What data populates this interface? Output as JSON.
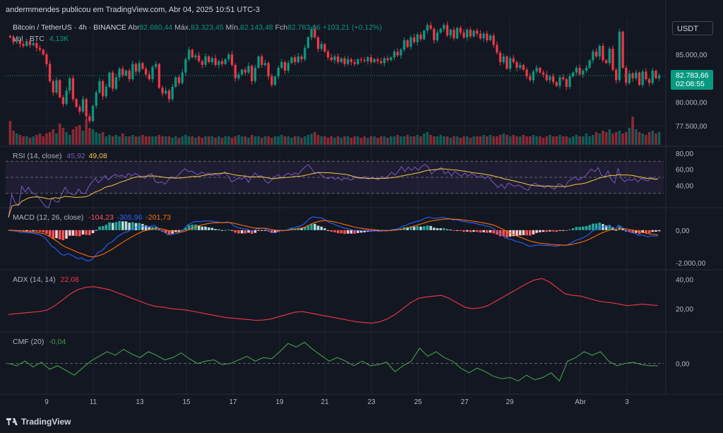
{
  "header": {
    "publisher": "andermmendes publicou em TradingView.com, Abr 04, 2025 10:51 UTC-3"
  },
  "symbol": {
    "name": "Bitcoin / TetherUS · 4h · BINANCE",
    "open_label": "Abr",
    "open": "82.680,44",
    "high_label": "Máx.",
    "high": "83.323,45",
    "low_label": "Mín.",
    "low": "82.143,48",
    "close_label": "Fch",
    "close": "82.783,66",
    "change": "+103,21 (+0,12%)"
  },
  "volume": {
    "label": "Vol · BTC",
    "value": "4,13K"
  },
  "currency_button": "USDT",
  "last_price": {
    "value": "82.783,66",
    "countdown": "02:08:55"
  },
  "colors": {
    "up": "#089981",
    "down": "#f23645",
    "rsi": "#7e57c2",
    "rsi_ma": "#f5c542",
    "macd": "#2962ff",
    "signal": "#ff6d00",
    "adx": "#f23645",
    "cmf": "#43a047"
  },
  "chart_data": [
    {
      "type": "candlestick",
      "title": "Bitcoin / TetherUS · 4h · BINANCE",
      "x_ticks": [
        "9",
        "11",
        "13",
        "15",
        "17",
        "19",
        "21",
        "23",
        "25",
        "27",
        "29",
        "Abr",
        "3"
      ],
      "y_ticks": [
        "85.000,00",
        "80.000,00",
        "77.500,00"
      ],
      "ylim": [
        75500,
        88800
      ],
      "closes": [
        86800,
        86300,
        86500,
        86100,
        85900,
        86400,
        86000,
        86200,
        85700,
        85500,
        85000,
        84000,
        82200,
        81000,
        82300,
        80500,
        79800,
        81200,
        82500,
        80300,
        79500,
        79000,
        80300,
        78500,
        78000,
        79600,
        81000,
        82200,
        80600,
        81600,
        83100,
        81400,
        82600,
        83500,
        82800,
        83300,
        82400,
        84000,
        83200,
        84100,
        83500,
        82900,
        82400,
        83700,
        84000,
        81500,
        80900,
        81200,
        80300,
        81600,
        82600,
        82000,
        83100,
        84500,
        85500,
        84700,
        84900,
        84300,
        83900,
        84800,
        84200,
        84600,
        83900,
        84300,
        84000,
        84500,
        85000,
        83900,
        82500,
        82900,
        83400,
        83100,
        83800,
        82200,
        83600,
        84800,
        83900,
        84100,
        82700,
        81800,
        82700,
        83600,
        84200,
        83300,
        84100,
        84700,
        84200,
        84800,
        84500,
        85700,
        86800,
        87700,
        86800,
        85600,
        86100,
        85300,
        84700,
        84400,
        84800,
        84200,
        84600,
        84000,
        84500,
        84200,
        84000,
        84500,
        84400,
        84300,
        84700,
        84200,
        84500,
        84300,
        84100,
        84600,
        84400,
        84700,
        85300,
        84900,
        85500,
        86500,
        85800,
        86800,
        86300,
        87100,
        86600,
        87500,
        88100,
        87700,
        86500,
        87300,
        87700,
        88100,
        87000,
        87600,
        86700,
        87800,
        87300,
        86800,
        87600,
        86900,
        87500,
        87200,
        86700,
        87200,
        86500,
        87000,
        86000,
        85200,
        84200,
        84800,
        83500,
        84600,
        84200,
        83600,
        83900,
        83400,
        82700,
        82300,
        83200,
        83600,
        83100,
        82900,
        82300,
        82700,
        82100,
        81700,
        82600,
        82400,
        81600,
        82700,
        83100,
        83600,
        82900,
        83300,
        83600,
        84400,
        85300,
        84800,
        85900,
        84400,
        84100,
        85600,
        83400,
        82300,
        87400,
        83600,
        82000,
        83000,
        82500,
        83100,
        81800,
        83200,
        82400,
        82000,
        83300,
        82500,
        82784
      ],
      "volume": [
        0.85,
        0.5,
        0.4,
        0.35,
        0.3,
        0.3,
        0.25,
        0.3,
        0.35,
        0.4,
        0.3,
        0.4,
        0.45,
        0.55,
        0.4,
        0.75,
        0.6,
        0.45,
        0.35,
        0.55,
        0.65,
        0.7,
        0.5,
        0.9,
        0.6,
        0.55,
        0.45,
        0.4,
        0.45,
        0.3,
        0.35,
        0.3,
        0.35,
        0.3,
        0.4,
        0.3,
        0.3,
        0.35,
        0.3,
        0.3,
        0.35,
        0.3,
        0.3,
        0.3,
        0.3,
        0.35,
        0.3,
        0.3,
        0.3,
        0.25,
        0.3,
        0.25,
        0.3,
        0.35,
        0.3,
        0.3,
        0.25,
        0.3,
        0.25,
        0.3,
        0.3,
        0.3,
        0.25,
        0.3,
        0.25,
        0.3,
        0.3,
        0.25,
        0.3,
        0.35,
        0.3,
        0.3,
        0.25,
        0.35,
        0.3,
        0.3,
        0.25,
        0.3,
        0.3,
        0.25,
        0.3,
        0.3,
        0.35,
        0.3,
        0.3,
        0.25,
        0.3,
        0.3,
        0.25,
        0.3,
        0.35,
        0.4,
        0.45,
        0.35,
        0.3,
        0.3,
        0.25,
        0.3,
        0.25,
        0.3,
        0.25,
        0.3,
        0.3,
        0.25,
        0.3,
        0.3,
        0.25,
        0.3,
        0.25,
        0.3,
        0.3,
        0.25,
        0.3,
        0.3,
        0.25,
        0.3,
        0.3,
        0.35,
        0.3,
        0.3,
        0.35,
        0.3,
        0.3,
        0.35,
        0.3,
        0.4,
        0.45,
        0.35,
        0.3,
        0.3,
        0.35,
        0.3,
        0.3,
        0.25,
        0.3,
        0.3,
        0.25,
        0.3,
        0.3,
        0.25,
        0.3,
        0.3,
        0.3,
        0.35,
        0.3,
        0.35,
        0.3,
        0.3,
        0.35,
        0.4,
        0.35,
        0.3,
        0.35,
        0.3,
        0.3,
        0.35,
        0.3,
        0.3,
        0.35,
        0.3,
        0.3,
        0.25,
        0.3,
        0.35,
        0.3,
        0.3,
        0.35,
        0.3,
        0.3,
        0.25,
        0.3,
        0.35,
        0.3,
        0.3,
        0.4,
        0.3,
        0.35,
        0.45,
        0.4,
        0.5,
        0.45,
        0.55,
        0.4,
        0.45,
        0.5,
        0.4,
        0.45,
        0.6,
        1.0,
        0.55,
        0.45,
        0.4,
        0.35,
        0.45,
        0.5,
        0.4,
        0.45,
        0.5,
        0.7,
        0.4
      ]
    },
    {
      "type": "line",
      "title": "RSI (14, close)",
      "values_label": [
        "45,92",
        "49,08"
      ],
      "y_ticks": [
        "80,00",
        "60,00",
        "40,00"
      ],
      "ylim": [
        14,
        86
      ],
      "bands": [
        70,
        50,
        30
      ]
    },
    {
      "type": "macd",
      "title": "MACD (12, 26, close)",
      "values_label": [
        "-104,23",
        "-305,96",
        "-201,73"
      ],
      "y_ticks": [
        "0,00",
        "-2.000,00"
      ],
      "ylim": [
        -2350,
        1250
      ]
    },
    {
      "type": "line",
      "title": "ADX (14, 14)",
      "values_label": [
        "22,08"
      ],
      "y_ticks": [
        "40,00",
        "20,00"
      ],
      "ylim": [
        5,
        45
      ],
      "series": [
        {
          "values": [
            16,
            16.5,
            17,
            17.5,
            18,
            19,
            22,
            26,
            30,
            33,
            34.5,
            35,
            34,
            33,
            31,
            29,
            27,
            25,
            23,
            21.5,
            21,
            20,
            19.5,
            19,
            18,
            17,
            16,
            15,
            14,
            13.5,
            13,
            12.5,
            12,
            12.2,
            13,
            14.5,
            16,
            17.5,
            18,
            17,
            16,
            15,
            14,
            13,
            12,
            11,
            10.5,
            10,
            11,
            13,
            16,
            20,
            24,
            27,
            28,
            28.5,
            29,
            27,
            24,
            21,
            20,
            20.5,
            22,
            25,
            28,
            31,
            34,
            37,
            39.5,
            40.5,
            38,
            34,
            30,
            29,
            28.5,
            27,
            25.5,
            24.5,
            24,
            23,
            22,
            22.5,
            23,
            22.5,
            22.1
          ]
        }
      ]
    },
    {
      "type": "line",
      "title": "CMF (20)",
      "values_label": [
        "-0,04"
      ],
      "y_ticks": [
        "0,00"
      ],
      "ylim": [
        -0.25,
        0.25
      ],
      "series": [
        {
          "values": [
            0,
            -0.02,
            0.02,
            -0.03,
            0.01,
            -0.05,
            -0.02,
            -0.06,
            -0.1,
            -0.04,
            0.02,
            0.06,
            0.1,
            0.07,
            0.12,
            0.08,
            0.05,
            0.1,
            0.07,
            0.03,
            0.05,
            0.09,
            0.04,
            0,
            0.02,
            0.03,
            -0.01,
            0,
            0.03,
            0.06,
            0.02,
            0.05,
            0.04,
            0.1,
            0.17,
            0.14,
            0.18,
            0.12,
            0.07,
            0.02,
            0.05,
            0.02,
            -0.02,
            0.02,
            -0.02,
            -0.01,
            0.01,
            -0.07,
            -0.02,
            0.02,
            0.13,
            0.06,
            0.1,
            0.05,
            0.02,
            -0.04,
            -0.08,
            -0.04,
            -0.07,
            -0.11,
            -0.13,
            -0.12,
            -0.15,
            -0.1,
            -0.14,
            -0.12,
            -0.08,
            -0.15,
            0.02,
            0.05,
            0.1,
            0.07,
            0.1,
            0.02,
            -0.02,
            0,
            0.01,
            -0.01,
            -0.02,
            -0.02
          ]
        }
      ]
    }
  ]
}
